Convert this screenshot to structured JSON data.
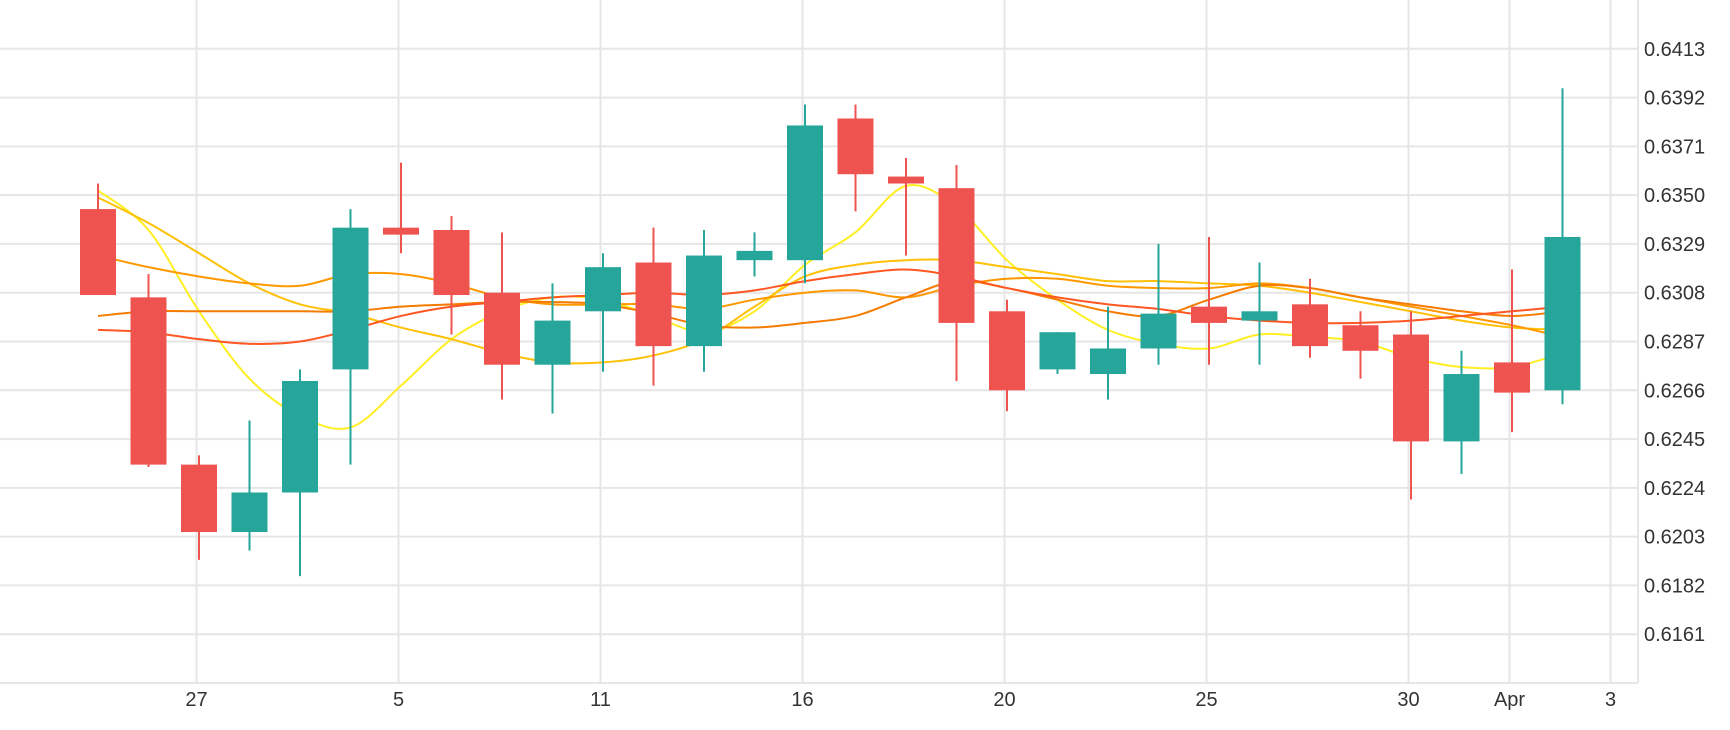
{
  "chart_data": {
    "type": "candlestick",
    "grid": true,
    "y_axis_position": "right",
    "ylim": [
      0.614,
      0.6434
    ],
    "y_ticks": [
      "0.6413",
      "0.6392",
      "0.6371",
      "0.6350",
      "0.6329",
      "0.6308",
      "0.6287",
      "0.6266",
      "0.6245",
      "0.6224",
      "0.6203",
      "0.6182",
      "0.6161"
    ],
    "x_ticks": [
      {
        "label": "27",
        "index": 1
      },
      {
        "label": "5",
        "index": 5
      },
      {
        "label": "11",
        "index": 9
      },
      {
        "label": "16",
        "index": 13
      },
      {
        "label": "20",
        "index": 17
      },
      {
        "label": "25",
        "index": 21
      },
      {
        "label": "30",
        "index": 25
      },
      {
        "label": "Apr",
        "index": 27
      },
      {
        "label": "3",
        "index": 29
      }
    ],
    "colors": {
      "up": "#26a69a",
      "down": "#ef5350",
      "grid": "#e6e6e6"
    },
    "candles": [
      {
        "open": 0.6344,
        "high": 0.6355,
        "low": 0.6308,
        "close": 0.6307
      },
      {
        "open": 0.6306,
        "high": 0.6316,
        "low": 0.6233,
        "close": 0.6234
      },
      {
        "open": 0.6234,
        "high": 0.6238,
        "low": 0.6193,
        "close": 0.6205
      },
      {
        "open": 0.6205,
        "high": 0.6253,
        "low": 0.6197,
        "close": 0.6222
      },
      {
        "open": 0.6222,
        "high": 0.6275,
        "low": 0.6186,
        "close": 0.627
      },
      {
        "open": 0.6275,
        "high": 0.6344,
        "low": 0.6234,
        "close": 0.6336
      },
      {
        "open": 0.6336,
        "high": 0.6364,
        "low": 0.6325,
        "close": 0.6333
      },
      {
        "open": 0.6335,
        "high": 0.6341,
        "low": 0.629,
        "close": 0.6307
      },
      {
        "open": 0.6308,
        "high": 0.6334,
        "low": 0.6262,
        "close": 0.6277
      },
      {
        "open": 0.6277,
        "high": 0.6312,
        "low": 0.6256,
        "close": 0.6296
      },
      {
        "open": 0.63,
        "high": 0.6325,
        "low": 0.6274,
        "close": 0.6319
      },
      {
        "open": 0.6321,
        "high": 0.6336,
        "low": 0.6268,
        "close": 0.6285
      },
      {
        "open": 0.6285,
        "high": 0.6335,
        "low": 0.6274,
        "close": 0.6324
      },
      {
        "open": 0.6322,
        "high": 0.6334,
        "low": 0.6315,
        "close": 0.6326
      },
      {
        "open": 0.6322,
        "high": 0.6389,
        "low": 0.6312,
        "close": 0.638
      },
      {
        "open": 0.6383,
        "high": 0.6389,
        "low": 0.6343,
        "close": 0.6359
      },
      {
        "open": 0.6358,
        "high": 0.6366,
        "low": 0.6324,
        "close": 0.6355
      },
      {
        "open": 0.6353,
        "high": 0.6363,
        "low": 0.627,
        "close": 0.6295
      },
      {
        "open": 0.63,
        "high": 0.6305,
        "low": 0.6257,
        "close": 0.6266
      },
      {
        "open": 0.6275,
        "high": 0.6291,
        "low": 0.6273,
        "close": 0.6291
      },
      {
        "open": 0.6273,
        "high": 0.6302,
        "low": 0.6262,
        "close": 0.6284
      },
      {
        "open": 0.6284,
        "high": 0.6329,
        "low": 0.6277,
        "close": 0.6299
      },
      {
        "open": 0.6302,
        "high": 0.6332,
        "low": 0.6277,
        "close": 0.6295
      },
      {
        "open": 0.6296,
        "high": 0.6321,
        "low": 0.6277,
        "close": 0.63
      },
      {
        "open": 0.6303,
        "high": 0.6314,
        "low": 0.628,
        "close": 0.6285
      },
      {
        "open": 0.6294,
        "high": 0.63,
        "low": 0.6271,
        "close": 0.6283
      },
      {
        "open": 0.629,
        "high": 0.63,
        "low": 0.6219,
        "close": 0.6244
      },
      {
        "open": 0.6244,
        "high": 0.6283,
        "low": 0.623,
        "close": 0.6273
      },
      {
        "open": 0.6278,
        "high": 0.6318,
        "low": 0.6248,
        "close": 0.6265
      },
      {
        "open": 0.6266,
        "high": 0.6396,
        "low": 0.626,
        "close": 0.6332
      }
    ],
    "moving_averages": [
      {
        "color": "#ffee22",
        "values": [
          0.6352,
          0.6335,
          0.63,
          0.6271,
          0.6255,
          0.625,
          0.6268,
          0.6288,
          0.63,
          0.6306,
          0.6305,
          0.6298,
          0.6291,
          0.63,
          0.632,
          0.6334,
          0.6354,
          0.6345,
          0.6322,
          0.6305,
          0.6292,
          0.6286,
          0.6284,
          0.629,
          0.6289,
          0.6287,
          0.628,
          0.6276,
          0.6276,
          0.6282
        ]
      },
      {
        "color": "#ffc107",
        "values": [
          0.6349,
          0.6338,
          0.6325,
          0.6312,
          0.6303,
          0.6299,
          0.6293,
          0.6288,
          0.6282,
          0.6278,
          0.6278,
          0.6281,
          0.6288,
          0.6302,
          0.6315,
          0.632,
          0.6322,
          0.6322,
          0.6319,
          0.6316,
          0.6313,
          0.6313,
          0.6312,
          0.6311,
          0.6308,
          0.6304,
          0.63,
          0.6296,
          0.6293,
          0.6292
        ]
      },
      {
        "color": "#ff9800",
        "values": [
          0.6324,
          0.6319,
          0.6315,
          0.6312,
          0.6311,
          0.6316,
          0.6316,
          0.6312,
          0.6306,
          0.6303,
          0.6303,
          0.6303,
          0.6301,
          0.6305,
          0.6308,
          0.6309,
          0.6306,
          0.6311,
          0.6314,
          0.6314,
          0.6311,
          0.631,
          0.631,
          0.6312,
          0.631,
          0.6306,
          0.6302,
          0.6298,
          0.6294,
          0.6289
        ]
      },
      {
        "color": "#f57c00",
        "values": [
          0.6298,
          0.63,
          0.63,
          0.63,
          0.63,
          0.63,
          0.6302,
          0.6303,
          0.6304,
          0.6304,
          0.6303,
          0.6299,
          0.6294,
          0.6293,
          0.6295,
          0.6298,
          0.6306,
          0.6313,
          0.631,
          0.6305,
          0.63,
          0.6298,
          0.6305,
          0.6311,
          0.631,
          0.6306,
          0.6303,
          0.63,
          0.6298,
          0.63
        ]
      },
      {
        "color": "#ff5722",
        "values": [
          0.6292,
          0.6291,
          0.6288,
          0.6286,
          0.6287,
          0.6292,
          0.6298,
          0.6302,
          0.6304,
          0.6306,
          0.6307,
          0.6308,
          0.6307,
          0.6309,
          0.6313,
          0.6316,
          0.6318,
          0.6315,
          0.631,
          0.6306,
          0.6303,
          0.6301,
          0.6298,
          0.6296,
          0.6295,
          0.6295,
          0.6296,
          0.6298,
          0.63,
          0.6302
        ]
      }
    ]
  }
}
